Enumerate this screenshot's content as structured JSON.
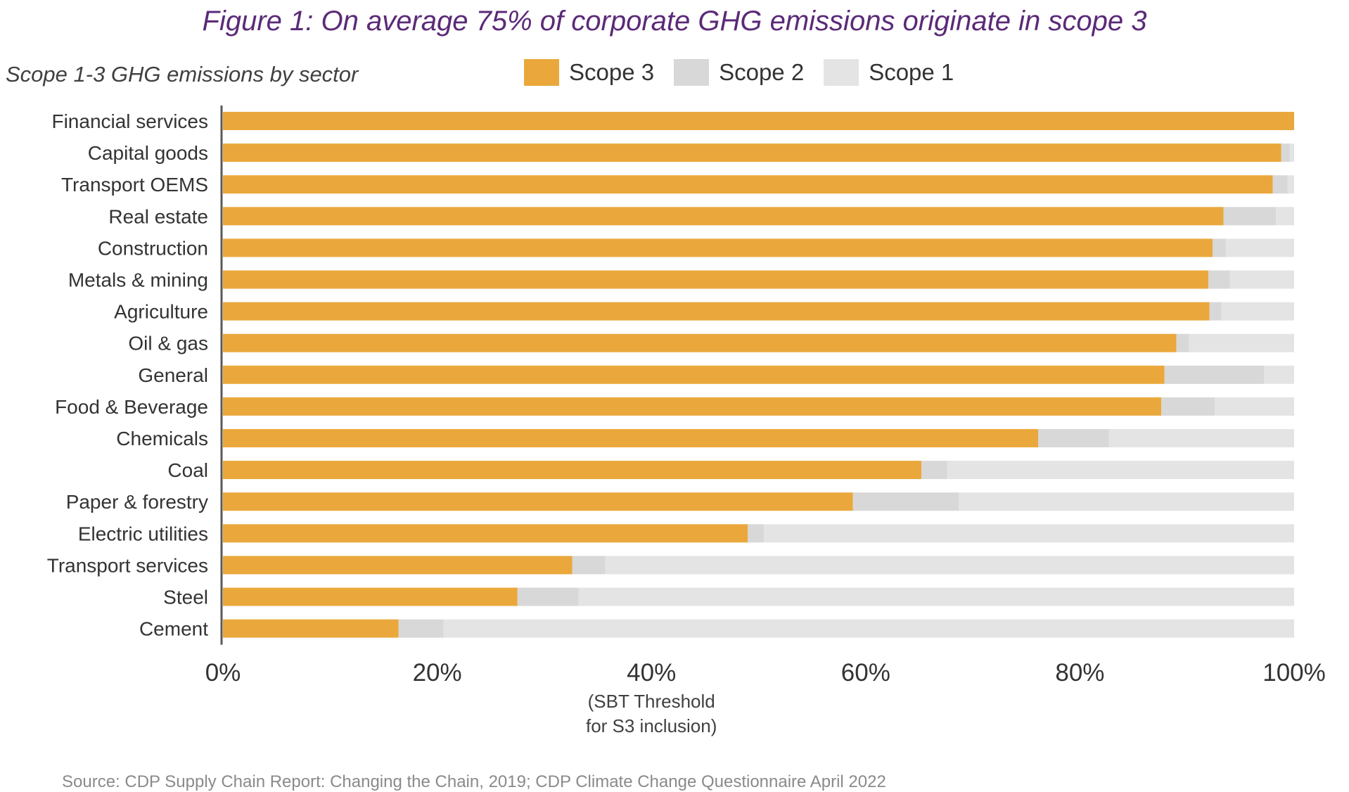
{
  "title": "Figure 1: On average 75% of corporate GHG emissions originate in scope 3",
  "subtitle": "Scope 1-3 GHG emissions by sector",
  "source": "Source: CDP Supply Chain Report: Changing the Chain, 2019; CDP Climate Change Questionnaire April 2022",
  "threshold_note": [
    "(SBT Threshold",
    "for S3 inclusion)"
  ],
  "colors": {
    "scope3": "#eaa83c",
    "scope2": "#d8d8d8",
    "scope1": "#e4e4e4",
    "axis": "#595959",
    "title": "#5b2a78"
  },
  "chart_data": {
    "type": "bar",
    "orientation": "horizontal",
    "stacked": true,
    "title": "Figure 1: On average 75% of corporate GHG emissions originate in scope 3",
    "subtitle": "Scope 1-3 GHG emissions by sector",
    "xlabel": "",
    "ylabel": "",
    "xlim": [
      0,
      100
    ],
    "x_ticks": [
      "0%",
      "20%",
      "40%",
      "60%",
      "80%",
      "100%"
    ],
    "x_tick_values": [
      0,
      20,
      40,
      60,
      80,
      100
    ],
    "grid": false,
    "legend_position": "top",
    "annotation": {
      "text": "(SBT Threshold for S3 inclusion)",
      "x": 40
    },
    "categories": [
      "Financial services",
      "Capital goods",
      "Transport OEMS",
      "Real estate",
      "Construction",
      "Metals & mining",
      "Agriculture",
      "Oil & gas",
      "General",
      "Food & Beverage",
      "Chemicals",
      "Coal",
      "Paper & forestry",
      "Electric utilities",
      "Transport services",
      "Steel",
      "Cement"
    ],
    "series": [
      {
        "name": "Scope 3",
        "values": [
          100,
          98.8,
          98.0,
          93.4,
          92.4,
          92.0,
          92.1,
          89.0,
          87.9,
          87.6,
          76.1,
          65.2,
          58.8,
          49.0,
          32.6,
          27.5,
          16.4
        ]
      },
      {
        "name": "Scope 2",
        "values": [
          0,
          0.8,
          1.4,
          4.9,
          1.2,
          2.0,
          1.1,
          1.2,
          9.3,
          5.0,
          6.6,
          2.4,
          9.9,
          1.5,
          3.1,
          5.7,
          4.2
        ]
      },
      {
        "name": "Scope 1",
        "values": [
          0,
          0.4,
          0.6,
          1.7,
          6.4,
          6.0,
          6.8,
          9.8,
          2.8,
          7.4,
          17.3,
          32.4,
          31.3,
          49.5,
          64.3,
          66.8,
          79.4
        ]
      }
    ]
  }
}
